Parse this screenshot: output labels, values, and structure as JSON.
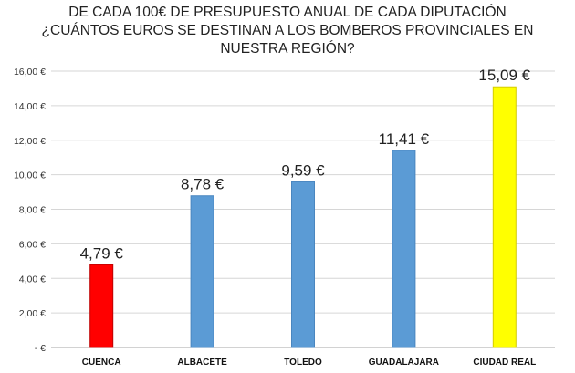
{
  "chart_data": {
    "type": "bar",
    "title_lines": [
      "DE CADA 100€ DE PRESUPUESTO ANUAL DE CADA DIPUTACIÓN",
      "¿CUÁNTOS EUROS SE DESTINAN A LOS BOMBEROS PROVINCIALES EN",
      "NUESTRA REGIÓN?"
    ],
    "categories": [
      "CUENCA",
      "ALBACETE",
      "TOLEDO",
      "GUADALAJARA",
      "CIUDAD REAL"
    ],
    "values": [
      4.79,
      8.78,
      9.59,
      11.41,
      15.09
    ],
    "data_labels": [
      "4,79 €",
      "8,78 €",
      "9,59 €",
      "11,41 €",
      "15,09 €"
    ],
    "bar_colors": [
      "#ff0000",
      "#5b9bd5",
      "#5b9bd5",
      "#5b9bd5",
      "#ffff00"
    ],
    "bar_border_colors": [
      "#c00000",
      "#4a86bf",
      "#4a86bf",
      "#4a86bf",
      "#d4cc00"
    ],
    "ylim": [
      0,
      16
    ],
    "ytick_values": [
      0,
      2,
      4,
      6,
      8,
      10,
      12,
      14,
      16
    ],
    "ytick_labels": [
      " -  €",
      "2,00 €",
      "4,00 €",
      "6,00 €",
      "8,00 €",
      "10,00 €",
      "12,00 €",
      "14,00 €",
      "16,00 €"
    ],
    "grid": true,
    "xlabel": "",
    "ylabel": ""
  }
}
